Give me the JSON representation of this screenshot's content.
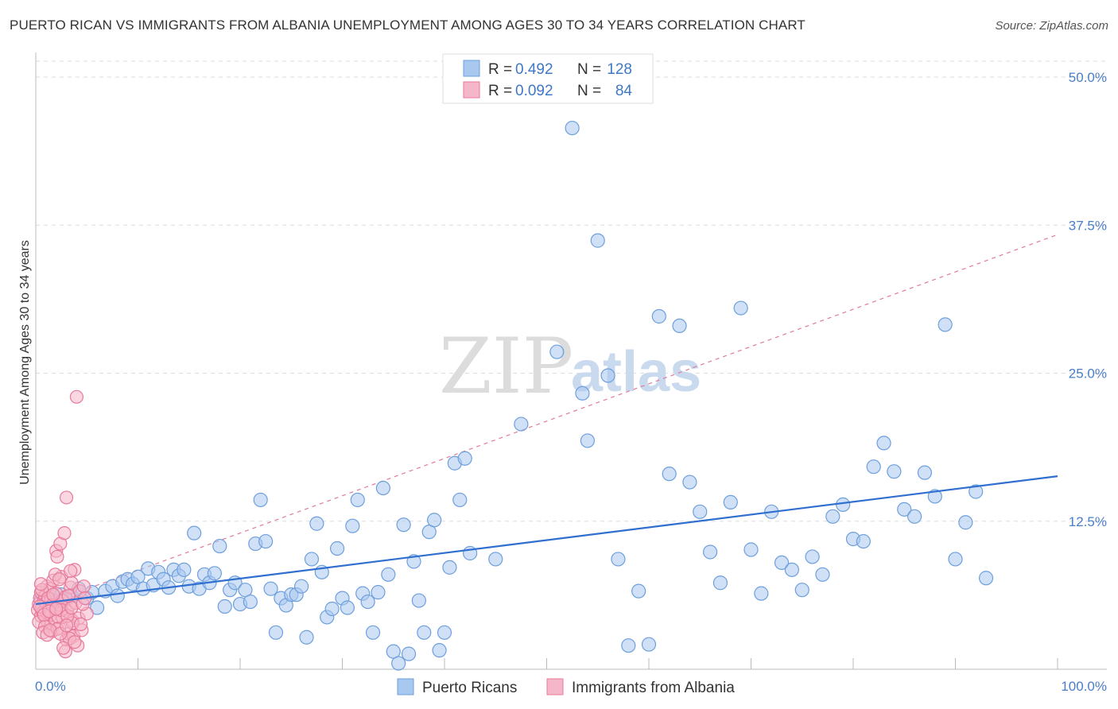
{
  "title": "PUERTO RICAN VS IMMIGRANTS FROM ALBANIA UNEMPLOYMENT AMONG AGES 30 TO 34 YEARS CORRELATION CHART",
  "source": "Source: ZipAtlas.com",
  "watermark": {
    "zip": "ZIP",
    "atlas": "atlas"
  },
  "legend": {
    "r_label": "R =",
    "n_label": "N =",
    "rows": [
      {
        "r": "0.492",
        "n": "128"
      },
      {
        "r": "0.092",
        "n": "84"
      }
    ]
  },
  "colors": {
    "blue_fill": "#a9c8f0",
    "blue_stroke": "#6d9fdc",
    "blue_line": "#2f6fcf",
    "pink_fill": "#f6b6c9",
    "pink_stroke": "#e7799b",
    "pink_line": "#e27a9a",
    "grid": "#dddddd",
    "axis": "#bbbbbb",
    "tick_text": "#4a7ec7"
  },
  "chart_data": {
    "type": "scatter",
    "title": "PUERTO RICAN VS IMMIGRANTS FROM ALBANIA UNEMPLOYMENT AMONG AGES 30 TO 34 YEARS CORRELATION CHART",
    "xlabel": "",
    "ylabel": "Unemployment Among Ages 30 to 34 years",
    "xlim": [
      0,
      100
    ],
    "ylim": [
      0,
      52
    ],
    "x_tick_labels": [
      "0.0%",
      "100.0%"
    ],
    "y_ticks": [
      12.5,
      25.0,
      37.5,
      50.0
    ],
    "y_tick_labels": [
      "12.5%",
      "25.0%",
      "37.5%",
      "50.0%"
    ],
    "grid": true,
    "legend_position": "top-center",
    "series": [
      {
        "name": "Puerto Ricans",
        "color": "#a9c8f0",
        "trend": {
          "x0": 0,
          "y0": 5.5,
          "x1": 100,
          "y1": 16.3,
          "style": "solid"
        },
        "points": [
          [
            0.5,
            5.8
          ],
          [
            1.0,
            5.4
          ],
          [
            1.5,
            6.1
          ],
          [
            2.0,
            5.7
          ],
          [
            2.5,
            6.3
          ],
          [
            3.0,
            5.9
          ],
          [
            3.5,
            6.2
          ],
          [
            4.2,
            6.8
          ],
          [
            5.0,
            6.0
          ],
          [
            5.5,
            6.5
          ],
          [
            6.0,
            5.2
          ],
          [
            6.8,
            6.6
          ],
          [
            7.5,
            7.0
          ],
          [
            8.0,
            6.2
          ],
          [
            8.5,
            7.4
          ],
          [
            9.0,
            7.6
          ],
          [
            9.5,
            7.2
          ],
          [
            10.0,
            7.8
          ],
          [
            10.5,
            6.8
          ],
          [
            11.0,
            8.5
          ],
          [
            11.5,
            7.1
          ],
          [
            12.0,
            8.2
          ],
          [
            12.5,
            7.6
          ],
          [
            13.0,
            6.9
          ],
          [
            13.5,
            8.4
          ],
          [
            14.0,
            7.9
          ],
          [
            14.5,
            8.4
          ],
          [
            15.0,
            7.0
          ],
          [
            15.5,
            11.5
          ],
          [
            16.0,
            6.8
          ],
          [
            16.5,
            8.0
          ],
          [
            17.0,
            7.3
          ],
          [
            17.5,
            8.1
          ],
          [
            18.0,
            10.4
          ],
          [
            18.5,
            5.3
          ],
          [
            19.0,
            6.7
          ],
          [
            19.5,
            7.3
          ],
          [
            20.0,
            5.5
          ],
          [
            20.5,
            6.7
          ],
          [
            21.0,
            5.7
          ],
          [
            21.5,
            10.6
          ],
          [
            22.0,
            14.3
          ],
          [
            22.5,
            10.8
          ],
          [
            23.0,
            6.8
          ],
          [
            23.5,
            3.1
          ],
          [
            24.0,
            6.0
          ],
          [
            24.5,
            5.4
          ],
          [
            25.0,
            6.3
          ],
          [
            25.5,
            6.3
          ],
          [
            26.0,
            7.0
          ],
          [
            26.5,
            2.7
          ],
          [
            27.0,
            9.3
          ],
          [
            27.5,
            12.3
          ],
          [
            28.0,
            8.2
          ],
          [
            28.5,
            4.4
          ],
          [
            29.0,
            5.1
          ],
          [
            29.5,
            10.2
          ],
          [
            30.0,
            6.0
          ],
          [
            30.5,
            5.2
          ],
          [
            31.0,
            12.1
          ],
          [
            31.5,
            14.3
          ],
          [
            32.0,
            6.4
          ],
          [
            32.5,
            5.7
          ],
          [
            33.0,
            3.1
          ],
          [
            33.5,
            6.5
          ],
          [
            34.0,
            15.3
          ],
          [
            34.5,
            8.0
          ],
          [
            35.0,
            1.5
          ],
          [
            35.5,
            0.5
          ],
          [
            36.0,
            12.2
          ],
          [
            36.5,
            1.3
          ],
          [
            37.0,
            9.1
          ],
          [
            37.5,
            5.8
          ],
          [
            38.0,
            3.1
          ],
          [
            38.5,
            11.6
          ],
          [
            39.0,
            12.6
          ],
          [
            39.5,
            1.6
          ],
          [
            40.0,
            3.1
          ],
          [
            40.5,
            8.6
          ],
          [
            41.0,
            17.4
          ],
          [
            41.5,
            14.3
          ],
          [
            42.0,
            17.8
          ],
          [
            42.5,
            9.8
          ],
          [
            45.0,
            9.3
          ],
          [
            47.5,
            20.7
          ],
          [
            51.0,
            26.8
          ],
          [
            52.5,
            45.7
          ],
          [
            53.5,
            23.3
          ],
          [
            54.0,
            19.3
          ],
          [
            55.0,
            36.2
          ],
          [
            56.0,
            24.8
          ],
          [
            57.0,
            9.3
          ],
          [
            58.0,
            2.0
          ],
          [
            59.0,
            6.6
          ],
          [
            60.0,
            2.1
          ],
          [
            61.0,
            29.8
          ],
          [
            62.0,
            16.5
          ],
          [
            63.0,
            29.0
          ],
          [
            64.0,
            15.8
          ],
          [
            65.0,
            13.3
          ],
          [
            66.0,
            9.9
          ],
          [
            67.0,
            7.3
          ],
          [
            68.0,
            14.1
          ],
          [
            69.0,
            30.5
          ],
          [
            70.0,
            10.1
          ],
          [
            71.0,
            6.4
          ],
          [
            72.0,
            13.3
          ],
          [
            73.0,
            9.0
          ],
          [
            74.0,
            8.4
          ],
          [
            75.0,
            6.7
          ],
          [
            76.0,
            9.5
          ],
          [
            77.0,
            8.0
          ],
          [
            78.0,
            12.9
          ],
          [
            79.0,
            13.9
          ],
          [
            80.0,
            11.0
          ],
          [
            81.0,
            10.8
          ],
          [
            82.0,
            17.1
          ],
          [
            83.0,
            19.1
          ],
          [
            84.0,
            16.7
          ],
          [
            85.0,
            13.5
          ],
          [
            86.0,
            12.9
          ],
          [
            87.0,
            16.6
          ],
          [
            88.0,
            14.6
          ],
          [
            89.0,
            29.1
          ],
          [
            90.0,
            9.3
          ],
          [
            91.0,
            12.4
          ],
          [
            92.0,
            15.0
          ],
          [
            93.0,
            7.7
          ]
        ]
      },
      {
        "name": "Immigrants from Albania",
        "color": "#f6b6c9",
        "trend": {
          "x0": 0,
          "y0": 5.2,
          "x1": 100,
          "y1": 36.7,
          "style": "dashed"
        },
        "points": [
          [
            0.2,
            5.0
          ],
          [
            0.3,
            5.5
          ],
          [
            0.4,
            6.0
          ],
          [
            0.5,
            4.5
          ],
          [
            0.5,
            6.5
          ],
          [
            0.6,
            5.2
          ],
          [
            0.7,
            4.8
          ],
          [
            0.8,
            5.8
          ],
          [
            0.9,
            6.2
          ],
          [
            1.0,
            4.2
          ],
          [
            1.0,
            5.6
          ],
          [
            1.1,
            7.0
          ],
          [
            1.2,
            3.8
          ],
          [
            1.3,
            5.1
          ],
          [
            1.4,
            6.8
          ],
          [
            1.5,
            4.6
          ],
          [
            1.5,
            5.9
          ],
          [
            1.6,
            3.2
          ],
          [
            1.7,
            7.5
          ],
          [
            1.8,
            5.3
          ],
          [
            1.9,
            4.0
          ],
          [
            2.0,
            6.4
          ],
          [
            2.0,
            10.0
          ],
          [
            2.1,
            9.5
          ],
          [
            2.2,
            5.0
          ],
          [
            2.3,
            3.5
          ],
          [
            2.4,
            10.6
          ],
          [
            2.5,
            7.8
          ],
          [
            2.6,
            4.4
          ],
          [
            2.7,
            5.7
          ],
          [
            2.8,
            11.5
          ],
          [
            2.9,
            6.1
          ],
          [
            3.0,
            2.5
          ],
          [
            3.0,
            14.5
          ],
          [
            3.1,
            4.9
          ],
          [
            3.2,
            3.0
          ],
          [
            3.3,
            5.4
          ],
          [
            3.4,
            6.9
          ],
          [
            3.5,
            7.3
          ],
          [
            3.6,
            4.1
          ],
          [
            3.7,
            2.8
          ],
          [
            3.8,
            8.4
          ],
          [
            3.9,
            5.6
          ],
          [
            4.0,
            23.0
          ],
          [
            4.1,
            2.0
          ],
          [
            4.2,
            4.3
          ],
          [
            4.3,
            6.6
          ],
          [
            4.5,
            3.3
          ],
          [
            4.7,
            7.0
          ],
          [
            5.0,
            4.7
          ],
          [
            0.3,
            4.0
          ],
          [
            0.6,
            6.7
          ],
          [
            0.9,
            3.6
          ],
          [
            1.2,
            6.0
          ],
          [
            1.6,
            5.4
          ],
          [
            2.2,
            4.4
          ],
          [
            2.6,
            5.8
          ],
          [
            2.9,
            1.5
          ],
          [
            3.3,
            2.6
          ],
          [
            3.6,
            3.9
          ],
          [
            0.4,
            5.3
          ],
          [
            0.8,
            4.6
          ],
          [
            1.3,
            4.9
          ],
          [
            1.7,
            6.3
          ],
          [
            2.1,
            3.4
          ],
          [
            2.5,
            5.0
          ],
          [
            3.1,
            4.5
          ],
          [
            3.5,
            5.2
          ],
          [
            4.4,
            3.8
          ],
          [
            0.7,
            3.1
          ],
          [
            1.1,
            2.9
          ],
          [
            1.9,
            8.0
          ],
          [
            2.3,
            7.6
          ],
          [
            2.7,
            1.8
          ],
          [
            3.2,
            6.2
          ],
          [
            3.8,
            2.3
          ],
          [
            4.6,
            5.5
          ],
          [
            0.5,
            7.2
          ],
          [
            1.4,
            3.3
          ],
          [
            2.0,
            5.1
          ],
          [
            2.4,
            3.0
          ],
          [
            3.0,
            3.7
          ],
          [
            3.4,
            8.3
          ],
          [
            4.8,
            6.0
          ]
        ]
      }
    ]
  },
  "bottom_legend": [
    "Puerto Ricans",
    "Immigrants from Albania"
  ]
}
